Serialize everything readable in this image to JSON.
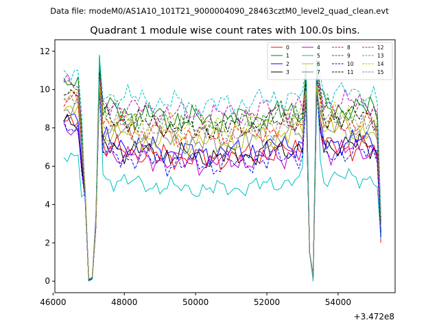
{
  "suptitle": "Data file: modeM0/AS1A10_101T21_9000004090_28463cztM0_level2_quad_clean.evt",
  "chart_data": {
    "type": "line",
    "title": "Quadrant 1 module wise count rates with 100.0s bins.",
    "xlabel": "",
    "ylabel": "",
    "x_offset_label": "+3.472e8",
    "xlim": [
      46050,
      55600
    ],
    "ylim": [
      -0.6,
      12.6
    ],
    "x_ticks": [
      46000,
      48000,
      50000,
      52000,
      54000
    ],
    "x_tick_labels": [
      "46000",
      "48000",
      "50000",
      "52000",
      "54000"
    ],
    "y_ticks": [
      0,
      2,
      4,
      6,
      8,
      10,
      12
    ],
    "y_tick_labels": [
      "0",
      "2",
      "4",
      "6",
      "8",
      "10",
      "12"
    ],
    "x_start": 46300,
    "x_step": 100,
    "n_points": 90,
    "legend_location": "upper-right",
    "series": [
      {
        "name": "0",
        "color": "#ff0000",
        "dash": "solid",
        "level": 7.0,
        "amp": 0.45,
        "peak": 10.5,
        "low_left": 0.1,
        "low_right": 0.3,
        "end": 2.0
      },
      {
        "name": "1",
        "color": "#008000",
        "dash": "solid",
        "level": 9.0,
        "amp": 0.5,
        "peak": 11.8,
        "low_left": 0.1,
        "low_right": 0.2,
        "end": 2.5
      },
      {
        "name": "2",
        "color": "#0000ff",
        "dash": "solid",
        "level": 7.3,
        "amp": 0.45,
        "peak": 10.0,
        "low_left": 0.05,
        "low_right": 0.3,
        "end": 2.4
      },
      {
        "name": "3",
        "color": "#000000",
        "dash": "solid",
        "level": 7.1,
        "amp": 0.45,
        "peak": 10.2,
        "low_left": 0.05,
        "low_right": 0.2,
        "end": 2.6
      },
      {
        "name": "4",
        "color": "#bf00bf",
        "dash": "solid",
        "level": 6.8,
        "amp": 0.45,
        "peak": 10.8,
        "low_left": 0.1,
        "low_right": 0.2,
        "end": 2.7
      },
      {
        "name": "5",
        "color": "#00bfbf",
        "dash": "solid",
        "level": 5.4,
        "amp": 0.35,
        "peak": 11.6,
        "low_left": 0.0,
        "low_right": 0.0,
        "end": 2.2
      },
      {
        "name": "6",
        "color": "#bfbf00",
        "dash": "solid",
        "level": 7.9,
        "amp": 0.5,
        "peak": 10.3,
        "low_left": 0.1,
        "low_right": 0.2,
        "end": 2.8
      },
      {
        "name": "7",
        "color": "#808080",
        "dash": "solid",
        "level": 7.8,
        "amp": 0.5,
        "peak": 10.0,
        "low_left": 0.1,
        "low_right": 0.3,
        "end": 2.9
      },
      {
        "name": "8",
        "color": "#ff0000",
        "dash": "dashed",
        "level": 8.2,
        "amp": 0.4,
        "peak": 10.6,
        "low_left": 0.1,
        "low_right": 0.2,
        "end": 3.0
      },
      {
        "name": "9",
        "color": "#008000",
        "dash": "dashed",
        "level": 8.9,
        "amp": 0.5,
        "peak": 11.2,
        "low_left": 0.1,
        "low_right": 0.2,
        "end": 3.1
      },
      {
        "name": "10",
        "color": "#0000ff",
        "dash": "dashed",
        "level": 6.7,
        "amp": 0.45,
        "peak": 9.9,
        "low_left": 0.05,
        "low_right": 0.2,
        "end": 2.3
      },
      {
        "name": "11",
        "color": "#000000",
        "dash": "dashed",
        "level": 8.6,
        "amp": 0.45,
        "peak": 10.9,
        "low_left": 0.1,
        "low_right": 0.2,
        "end": 3.2
      },
      {
        "name": "12",
        "color": "#bf00bf",
        "dash": "dashed",
        "level": 9.3,
        "amp": 0.45,
        "peak": 10.7,
        "low_left": 0.1,
        "low_right": 0.2,
        "end": 3.4
      },
      {
        "name": "13",
        "color": "#00bfbf",
        "dash": "dashed",
        "level": 9.8,
        "amp": 0.45,
        "peak": 11.8,
        "low_left": 0.1,
        "low_right": 0.2,
        "end": 3.5
      },
      {
        "name": "14",
        "color": "#bfbf00",
        "dash": "dashed",
        "level": 8.6,
        "amp": 0.5,
        "peak": 10.4,
        "low_left": 0.1,
        "low_right": 0.2,
        "end": 3.3
      },
      {
        "name": "15",
        "color": "#808080",
        "dash": "dashed",
        "level": 8.3,
        "amp": 0.45,
        "peak": 10.1,
        "low_left": 0.1,
        "low_right": 0.2,
        "end": 3.0
      }
    ]
  }
}
